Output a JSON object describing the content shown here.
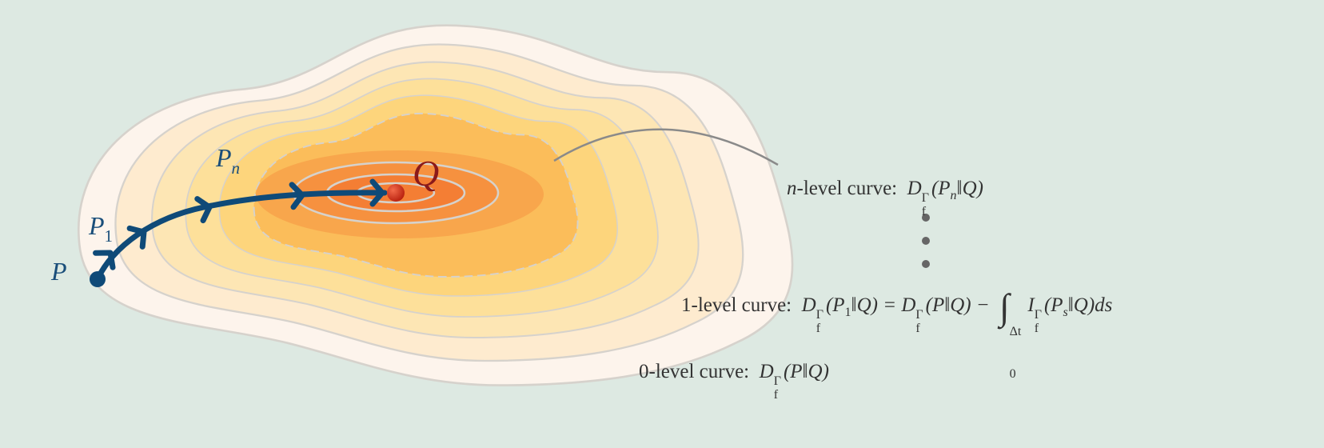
{
  "points": {
    "p": "P",
    "p1": [
      "P",
      "1"
    ],
    "pn": [
      "P",
      "n"
    ],
    "q": "Q"
  },
  "n_level": {
    "label": [
      "n",
      "-level curve:"
    ],
    "formula": [
      "D",
      "f",
      "Γ",
      "(P",
      "n",
      "‖Q)"
    ]
  },
  "one_level": {
    "label": "1-level curve:",
    "formula": [
      "D",
      "f",
      "Γ",
      "(P",
      "1",
      "‖Q) = ",
      "D",
      "f",
      "Γ",
      "(P‖Q) − ",
      "∫",
      "0",
      "Δt",
      "I",
      "f",
      "Γ",
      "(P",
      "s",
      "‖Q)ds"
    ]
  },
  "zero_level": {
    "label": "0-level curve:",
    "formula": [
      "D",
      "f",
      "Γ",
      "(P‖Q)"
    ]
  }
}
